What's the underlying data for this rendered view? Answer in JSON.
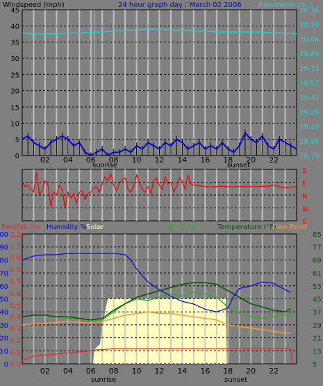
{
  "colors": {
    "background": "#808080",
    "plot_bg": "#808080",
    "grid": "#000000",
    "vertical_grid": "#c0c0c0",
    "wind": "#000000",
    "wind_avg": "#0000cc",
    "barometer": "#33cccc",
    "direction": "#ee0000",
    "humidity": "#0000dd",
    "solar": "#ffffc0",
    "solar_frame": "#ffffc0",
    "rain": "#ee2222",
    "windchill": "#33aa33",
    "temperature": "#005500",
    "dewpoint": "#ff9933"
  },
  "header": {
    "windspeed_label": "Windspeed (mph)",
    "title": "24 hour graph day : March 02 2006",
    "barometer_label": "Barometer (in.)"
  },
  "legend2": {
    "rainfall": "Rainfall (in)",
    "humidity": "Humidity %",
    "solar": "Solar",
    "windchill": "Windchill",
    "temperature": "Temperature (°F)",
    "dewpoint": "Dew Point"
  },
  "events": {
    "sunrise": "sunrise",
    "sunset": "sunset"
  },
  "chart_data": [
    {
      "type": "line",
      "title": "24 hour graph day : March 02 2006",
      "x_ticks": [
        "02",
        "04",
        "06",
        "08",
        "10",
        "12",
        "14",
        "16",
        "18",
        "20",
        "22"
      ],
      "xlim": [
        0,
        24
      ],
      "ylim": [
        0,
        45
      ],
      "y_ticks": [
        "0",
        "5",
        "10",
        "15",
        "20",
        "25",
        "30",
        "35",
        "40",
        "45"
      ],
      "y2lim": [
        28.79,
        30.36
      ],
      "y2_ticks": [
        "28.79",
        "28.95",
        "29.10",
        "29.26",
        "29.42",
        "29.57",
        "29.73",
        "29.89",
        "30.04",
        "30.20",
        "30.36"
      ],
      "ylabel": "Windspeed (mph)",
      "y2label": "Barometer (in.)",
      "series": [
        {
          "name": "Windspeed (mph)",
          "x": [
            0,
            0.5,
            1,
            1.5,
            2,
            2.5,
            3,
            3.5,
            4,
            4.5,
            5,
            5.5,
            6,
            6.5,
            7,
            7.5,
            8,
            8.5,
            9,
            9.5,
            10,
            10.5,
            11,
            11.5,
            12,
            12.5,
            13,
            13.5,
            14,
            14.5,
            15,
            15.5,
            16,
            16.5,
            17,
            17.5,
            18,
            18.5,
            19,
            19.5,
            20,
            20.5,
            21,
            21.5,
            22,
            22.5,
            23,
            23.5,
            24
          ],
          "values": [
            5,
            6,
            4,
            3,
            2,
            4,
            5,
            6,
            5,
            3,
            4,
            1,
            0,
            1,
            2,
            0,
            1,
            1,
            2,
            1,
            3,
            2,
            4,
            3,
            2,
            4,
            3,
            5,
            4,
            2,
            3,
            4,
            2,
            3,
            2,
            4,
            2,
            1,
            3,
            7,
            5,
            4,
            6,
            3,
            2,
            5,
            4,
            3,
            2
          ]
        },
        {
          "name": "Barometer (in.)",
          "x": [
            0,
            1,
            2,
            3,
            4,
            5,
            6,
            7,
            8,
            9,
            10,
            11,
            12,
            13,
            14,
            15,
            16,
            17,
            18,
            19,
            20,
            21,
            22,
            23,
            24
          ],
          "values": [
            30.11,
            30.1,
            30.1,
            30.1,
            30.11,
            30.11,
            30.12,
            30.12,
            30.13,
            30.14,
            30.14,
            30.15,
            30.15,
            30.14,
            30.14,
            30.13,
            30.13,
            30.12,
            30.12,
            30.12,
            30.12,
            30.12,
            30.11,
            30.11,
            30.1
          ]
        }
      ],
      "sunrise_x": 6.3,
      "sunset_x": 17.8
    },
    {
      "type": "line",
      "title": "Wind direction",
      "y_ticks": [
        "S",
        "E",
        "N",
        "W",
        "S"
      ],
      "xlim": [
        0,
        24
      ],
      "series": [
        {
          "name": "Wind direction",
          "x": [
            0,
            0.25,
            0.5,
            0.75,
            1,
            1.25,
            1.5,
            1.75,
            2,
            2.25,
            2.5,
            2.75,
            3,
            3.25,
            3.5,
            3.75,
            4,
            4.25,
            4.5,
            4.75,
            5,
            5.25,
            5.5,
            5.75,
            6,
            6.25,
            6.5,
            6.75,
            7,
            7.25,
            7.5,
            7.75,
            8,
            8.25,
            8.5,
            8.75,
            9,
            9.25,
            9.5,
            9.75,
            10,
            10.25,
            10.5,
            10.75,
            11,
            11.25,
            11.5,
            11.75,
            12,
            12.25,
            12.5,
            12.75,
            13,
            13.25,
            13.5,
            13.75,
            14,
            14.25,
            14.5,
            14.75,
            15,
            15.5,
            16,
            16.5,
            17,
            17.5,
            18,
            18.5,
            19,
            19.5,
            20,
            20.5,
            21,
            21.5,
            22,
            22.5,
            23,
            23.5,
            24
          ],
          "values": [
            270,
            240,
            250,
            220,
            200,
            340,
            190,
            210,
            280,
            250,
            100,
            200,
            180,
            250,
            220,
            90,
            200,
            160,
            190,
            120,
            200,
            210,
            150,
            190,
            200,
            230,
            240,
            200,
            260,
            310,
            280,
            330,
            250,
            210,
            260,
            290,
            300,
            220,
            200,
            240,
            320,
            260,
            220,
            200,
            240,
            190,
            280,
            300,
            250,
            220,
            310,
            260,
            270,
            200,
            240,
            300,
            280,
            220,
            320,
            260,
            250,
            245,
            240,
            238,
            240,
            242,
            240,
            238,
            240,
            240,
            240,
            238,
            242,
            240,
            250,
            240,
            230,
            235,
            240
          ]
        }
      ]
    },
    {
      "type": "line",
      "xlim": [
        0,
        24
      ],
      "ylabel_rain": "Rainfall (in)",
      "rain_ticks": [
        "0.0",
        "0.1",
        "0.2",
        "0.3",
        "0.4",
        "0.5",
        "0.6",
        "0.7",
        "0.8",
        "0.9",
        "1.1",
        "1.2"
      ],
      "ylim_rain": [
        0,
        1.2
      ],
      "hum_ticks": [
        "0",
        "10",
        "20",
        "30",
        "40",
        "50",
        "60",
        "70",
        "80",
        "90",
        "100"
      ],
      "ylim_hum": [
        0,
        100
      ],
      "temp_ticks": [
        "5",
        "13",
        "21",
        "29",
        "37",
        "45",
        "53",
        "61",
        "69",
        "77",
        "85"
      ],
      "ylim_temp": [
        5,
        85
      ],
      "series": [
        {
          "name": "Humidity %",
          "x": [
            0,
            1,
            2,
            3,
            4,
            5,
            6,
            7,
            8,
            9,
            9.5,
            10,
            10.5,
            11,
            11.5,
            12,
            13,
            14,
            15,
            16,
            17,
            18,
            18.5,
            19,
            20,
            21,
            22,
            23,
            23.5
          ],
          "values": [
            80,
            83,
            84,
            84,
            85,
            85,
            85,
            85,
            85,
            84,
            80,
            73,
            68,
            63,
            60,
            57,
            52,
            48,
            46,
            42,
            40,
            43,
            52,
            58,
            60,
            63,
            62,
            57,
            55
          ]
        },
        {
          "name": "Solar",
          "x": [
            0,
            6.2,
            6.3,
            6.8,
            7,
            7.3,
            7.5,
            8,
            9,
            10,
            11,
            12,
            13,
            14,
            15,
            16,
            17,
            17.8,
            17.9,
            24
          ],
          "values": [
            0,
            0,
            0.22,
            0.3,
            0.55,
            0.85,
            1,
            1,
            1,
            1,
            1,
            1,
            1,
            1,
            1,
            1,
            1,
            1,
            0,
            0
          ]
        },
        {
          "name": "Windchill",
          "x": [
            0,
            1,
            2,
            3,
            4,
            5,
            6,
            7,
            8,
            9,
            10,
            11,
            12,
            13,
            14,
            15,
            16,
            17,
            18,
            19,
            20,
            21,
            22,
            23,
            23.5
          ],
          "values": [
            34,
            35,
            35,
            34,
            33,
            33,
            32,
            32,
            37,
            42,
            45,
            44,
            46,
            48,
            47,
            49,
            48,
            46,
            40,
            36,
            34,
            33,
            34,
            35,
            36
          ]
        },
        {
          "name": "Temperature (°F)",
          "x": [
            0,
            1,
            2,
            3,
            4,
            5,
            6,
            7,
            8,
            9,
            10,
            11,
            12,
            13,
            14,
            15,
            16,
            17,
            18,
            19,
            20,
            21,
            22,
            23,
            23.5
          ],
          "values": [
            34,
            35,
            35,
            34,
            34,
            33,
            32,
            33,
            38,
            42,
            46,
            48,
            50,
            52,
            54,
            55,
            55,
            54,
            50,
            46,
            42,
            40,
            38,
            37,
            39
          ]
        },
        {
          "name": "Dew Point",
          "x": [
            0,
            2,
            4,
            6,
            7,
            8,
            9,
            10,
            11,
            12,
            13,
            14,
            15,
            16,
            17,
            18,
            19,
            20,
            21,
            22,
            23,
            23.5
          ],
          "values": [
            29,
            30,
            31,
            30,
            31,
            33,
            35,
            36,
            37,
            36,
            36,
            35,
            34,
            33,
            32,
            29,
            28,
            27,
            26,
            25,
            24,
            24
          ]
        },
        {
          "name": "Rainfall (in)",
          "x": [
            0,
            0.5,
            1,
            2,
            3,
            4,
            5,
            6,
            6.5,
            7,
            8,
            23.5,
            23.6
          ],
          "values": [
            0.03,
            0.05,
            0.07,
            0.08,
            0.09,
            0.1,
            0.11,
            0.12,
            0.13,
            0.13,
            0.14,
            0.14,
            0
          ]
        }
      ],
      "sunrise_x": 6.3,
      "sunset_x": 17.8
    }
  ]
}
